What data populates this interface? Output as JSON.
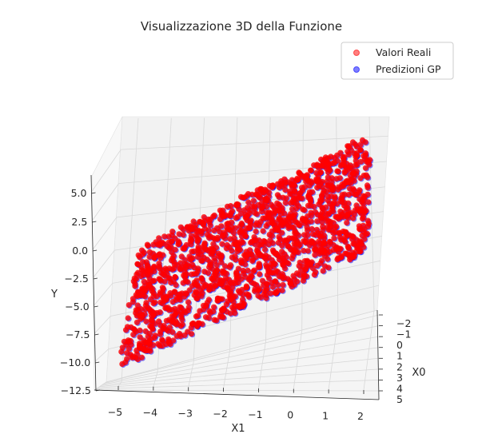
{
  "chart_data": {
    "type": "scatter",
    "projection": "3d",
    "title": "Visualizzazione 3D della Funzione",
    "xlabel": "X1",
    "ylabel": "Y",
    "zlabel": "X0",
    "x_ticks": [
      "−5",
      "−4",
      "−3",
      "−2",
      "−1",
      "0",
      "1",
      "2"
    ],
    "y_ticks": [
      "−12.5",
      "−10.0",
      "−7.5",
      "−5.0",
      "−2.5",
      "0.0",
      "2.5",
      "5.0"
    ],
    "z_ticks": [
      "−2",
      "−1",
      "0",
      "1",
      "2",
      "3",
      "4",
      "5"
    ],
    "xlim": [
      -5.5,
      2.3
    ],
    "ylim": [
      -12.5,
      6.5
    ],
    "zlim": [
      -2.5,
      5.5
    ],
    "grid": true,
    "legend": {
      "position": "top-right",
      "entries": [
        "Valori Reali",
        "Predizioni GP"
      ]
    },
    "series": [
      {
        "name": "Valori Reali",
        "color": "#ff0000",
        "alpha": 0.5
      },
      {
        "name": "Predizioni GP",
        "color": "#0000ff",
        "alpha": 0.5
      }
    ],
    "surface_corners": [
      {
        "x1": -5.0,
        "x0": 5.0,
        "y": -11.0
      },
      {
        "x1": -5.0,
        "x0": -2.0,
        "y": -2.0
      },
      {
        "x1": 2.0,
        "x0": -2.0,
        "y": 6.5
      },
      {
        "x1": 2.0,
        "x0": 5.0,
        "y": -3.0
      }
    ]
  }
}
